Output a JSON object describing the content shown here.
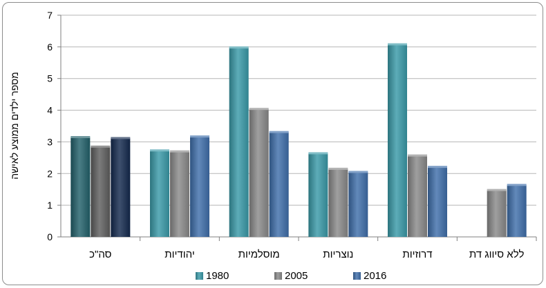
{
  "chart_data": {
    "type": "bar",
    "title": "",
    "xlabel": "",
    "ylabel": "מספר ילדים ממוצע לאישה",
    "ylim": [
      0,
      7
    ],
    "yticks": [
      0,
      1,
      2,
      3,
      4,
      5,
      6,
      7
    ],
    "grid": true,
    "legend_position": "bottom",
    "categories": [
      "סה\"כ",
      "יהודיות",
      "מוסלמיות",
      "נוצריות",
      "דרוזיות",
      "ללא סיווג דת"
    ],
    "series": [
      {
        "name": "1980",
        "color": "#3a9aa8",
        "values": [
          3.14,
          2.72,
          5.97,
          2.63,
          6.07,
          null
        ]
      },
      {
        "name": "2005",
        "color": "#8a8a8a",
        "values": [
          2.84,
          2.69,
          4.03,
          2.14,
          2.56,
          1.47
        ]
      },
      {
        "name": "2016",
        "color": "#3f6fab",
        "values": [
          3.11,
          3.16,
          3.3,
          2.04,
          2.2,
          1.63
        ]
      }
    ],
    "total_category_colors": [
      "#22606a",
      "#5e5e5e",
      "#14294e"
    ]
  }
}
